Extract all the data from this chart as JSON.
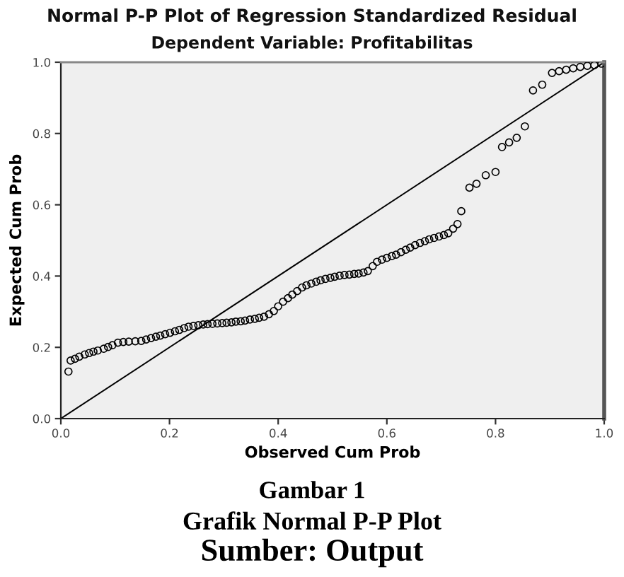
{
  "chart_data": {
    "type": "scatter",
    "title": "Normal P-P Plot of Regression Standardized Residual",
    "subtitle": "Dependent Variable: Profitabilitas",
    "xlabel": "Observed Cum Prob",
    "ylabel": "Expected Cum Prob",
    "xlim": [
      0,
      1
    ],
    "ylim": [
      0,
      1
    ],
    "xticks": [
      {
        "value": 0,
        "label": "0.0"
      },
      {
        "value": 0.2,
        "label": "0.2"
      },
      {
        "value": 0.4,
        "label": "0.4"
      },
      {
        "value": 0.6,
        "label": "0.6"
      },
      {
        "value": 0.8,
        "label": "0.8"
      },
      {
        "value": 1,
        "label": "1.0"
      }
    ],
    "yticks": [
      {
        "value": 0,
        "label": "0.0"
      },
      {
        "value": 0.2,
        "label": "0.2"
      },
      {
        "value": 0.4,
        "label": "0.4"
      },
      {
        "value": 0.6,
        "label": "0.6"
      },
      {
        "value": 0.8,
        "label": "0.8"
      },
      {
        "value": 1,
        "label": "1.0"
      }
    ],
    "series": [
      {
        "color": "#000000",
        "marker": "circle",
        "x": [
          0.014,
          0.018,
          0.026,
          0.034,
          0.044,
          0.052,
          0.06,
          0.068,
          0.079,
          0.087,
          0.095,
          0.105,
          0.115,
          0.125,
          0.137,
          0.148,
          0.157,
          0.166,
          0.175,
          0.183,
          0.192,
          0.201,
          0.21,
          0.218,
          0.227,
          0.235,
          0.244,
          0.253,
          0.262,
          0.27,
          0.279,
          0.288,
          0.297,
          0.305,
          0.314,
          0.322,
          0.331,
          0.339,
          0.348,
          0.357,
          0.365,
          0.374,
          0.383,
          0.392,
          0.4,
          0.409,
          0.418,
          0.426,
          0.435,
          0.444,
          0.452,
          0.461,
          0.47,
          0.478,
          0.487,
          0.496,
          0.504,
          0.513,
          0.522,
          0.531,
          0.54,
          0.548,
          0.557,
          0.565,
          0.574,
          0.582,
          0.591,
          0.6,
          0.609,
          0.617,
          0.626,
          0.635,
          0.643,
          0.652,
          0.661,
          0.67,
          0.678,
          0.687,
          0.696,
          0.705,
          0.713,
          0.722,
          0.73,
          0.737,
          0.752,
          0.765,
          0.782,
          0.8,
          0.812,
          0.825,
          0.839,
          0.854,
          0.869,
          0.886,
          0.904,
          0.917,
          0.93,
          0.943,
          0.956,
          0.969,
          0.982,
          0.995
        ],
        "values": [
          0.132,
          0.163,
          0.168,
          0.174,
          0.18,
          0.184,
          0.188,
          0.191,
          0.196,
          0.201,
          0.206,
          0.213,
          0.215,
          0.216,
          0.217,
          0.218,
          0.222,
          0.226,
          0.23,
          0.233,
          0.237,
          0.241,
          0.245,
          0.249,
          0.254,
          0.258,
          0.26,
          0.262,
          0.264,
          0.265,
          0.266,
          0.267,
          0.268,
          0.269,
          0.27,
          0.272,
          0.273,
          0.275,
          0.278,
          0.28,
          0.283,
          0.286,
          0.293,
          0.302,
          0.315,
          0.328,
          0.338,
          0.348,
          0.358,
          0.368,
          0.374,
          0.379,
          0.384,
          0.388,
          0.392,
          0.395,
          0.398,
          0.401,
          0.403,
          0.404,
          0.406,
          0.407,
          0.41,
          0.414,
          0.428,
          0.44,
          0.446,
          0.451,
          0.456,
          0.46,
          0.467,
          0.474,
          0.48,
          0.487,
          0.493,
          0.498,
          0.503,
          0.507,
          0.511,
          0.515,
          0.52,
          0.533,
          0.546,
          0.582,
          0.648,
          0.659,
          0.683,
          0.692,
          0.762,
          0.775,
          0.788,
          0.82,
          0.921,
          0.937,
          0.97,
          0.975,
          0.979,
          0.983,
          0.987,
          0.99,
          0.992,
          0.996
        ]
      },
      {
        "type": "line",
        "color": "#000000",
        "marker": "none",
        "x": [
          0,
          1
        ],
        "values": [
          0,
          1
        ]
      }
    ],
    "annotations": [
      "Gambar 1",
      "Grafik Normal P-P Plot",
      "Sumber: Output"
    ]
  }
}
